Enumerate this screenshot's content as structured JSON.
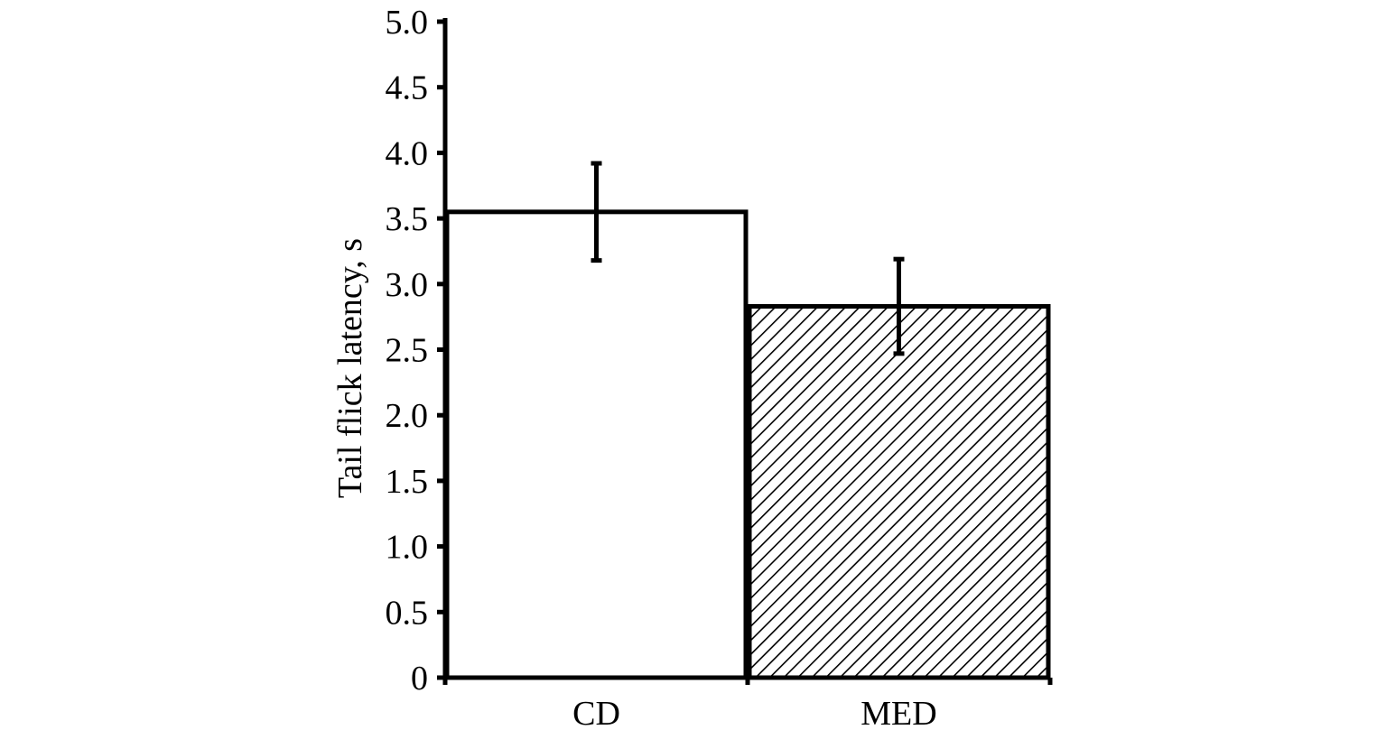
{
  "chart_data": {
    "type": "bar",
    "title": "",
    "xlabel": "",
    "ylabel": "Tail flick latency, s",
    "categories": [
      "CD",
      "MED"
    ],
    "values": [
      3.55,
      2.83
    ],
    "errors": [
      0.37,
      0.36
    ],
    "ylim": [
      0,
      5.0
    ],
    "yticks": [
      {
        "value": 0,
        "label": "0"
      },
      {
        "value": 0.5,
        "label": "0.5"
      },
      {
        "value": 1.0,
        "label": "1.0"
      },
      {
        "value": 1.5,
        "label": "1.5"
      },
      {
        "value": 2.0,
        "label": "2.0"
      },
      {
        "value": 2.5,
        "label": "2.5"
      },
      {
        "value": 3.0,
        "label": "3.0"
      },
      {
        "value": 3.5,
        "label": "3.5"
      },
      {
        "value": 4.0,
        "label": "4.0"
      },
      {
        "value": 4.5,
        "label": "4.5"
      },
      {
        "value": 5.0,
        "label": "5.0"
      }
    ],
    "fills": [
      "white",
      "diagonal-hatch"
    ],
    "grid": false,
    "legend": "none",
    "colors": {
      "stroke": "#000000",
      "background": "#ffffff"
    }
  }
}
